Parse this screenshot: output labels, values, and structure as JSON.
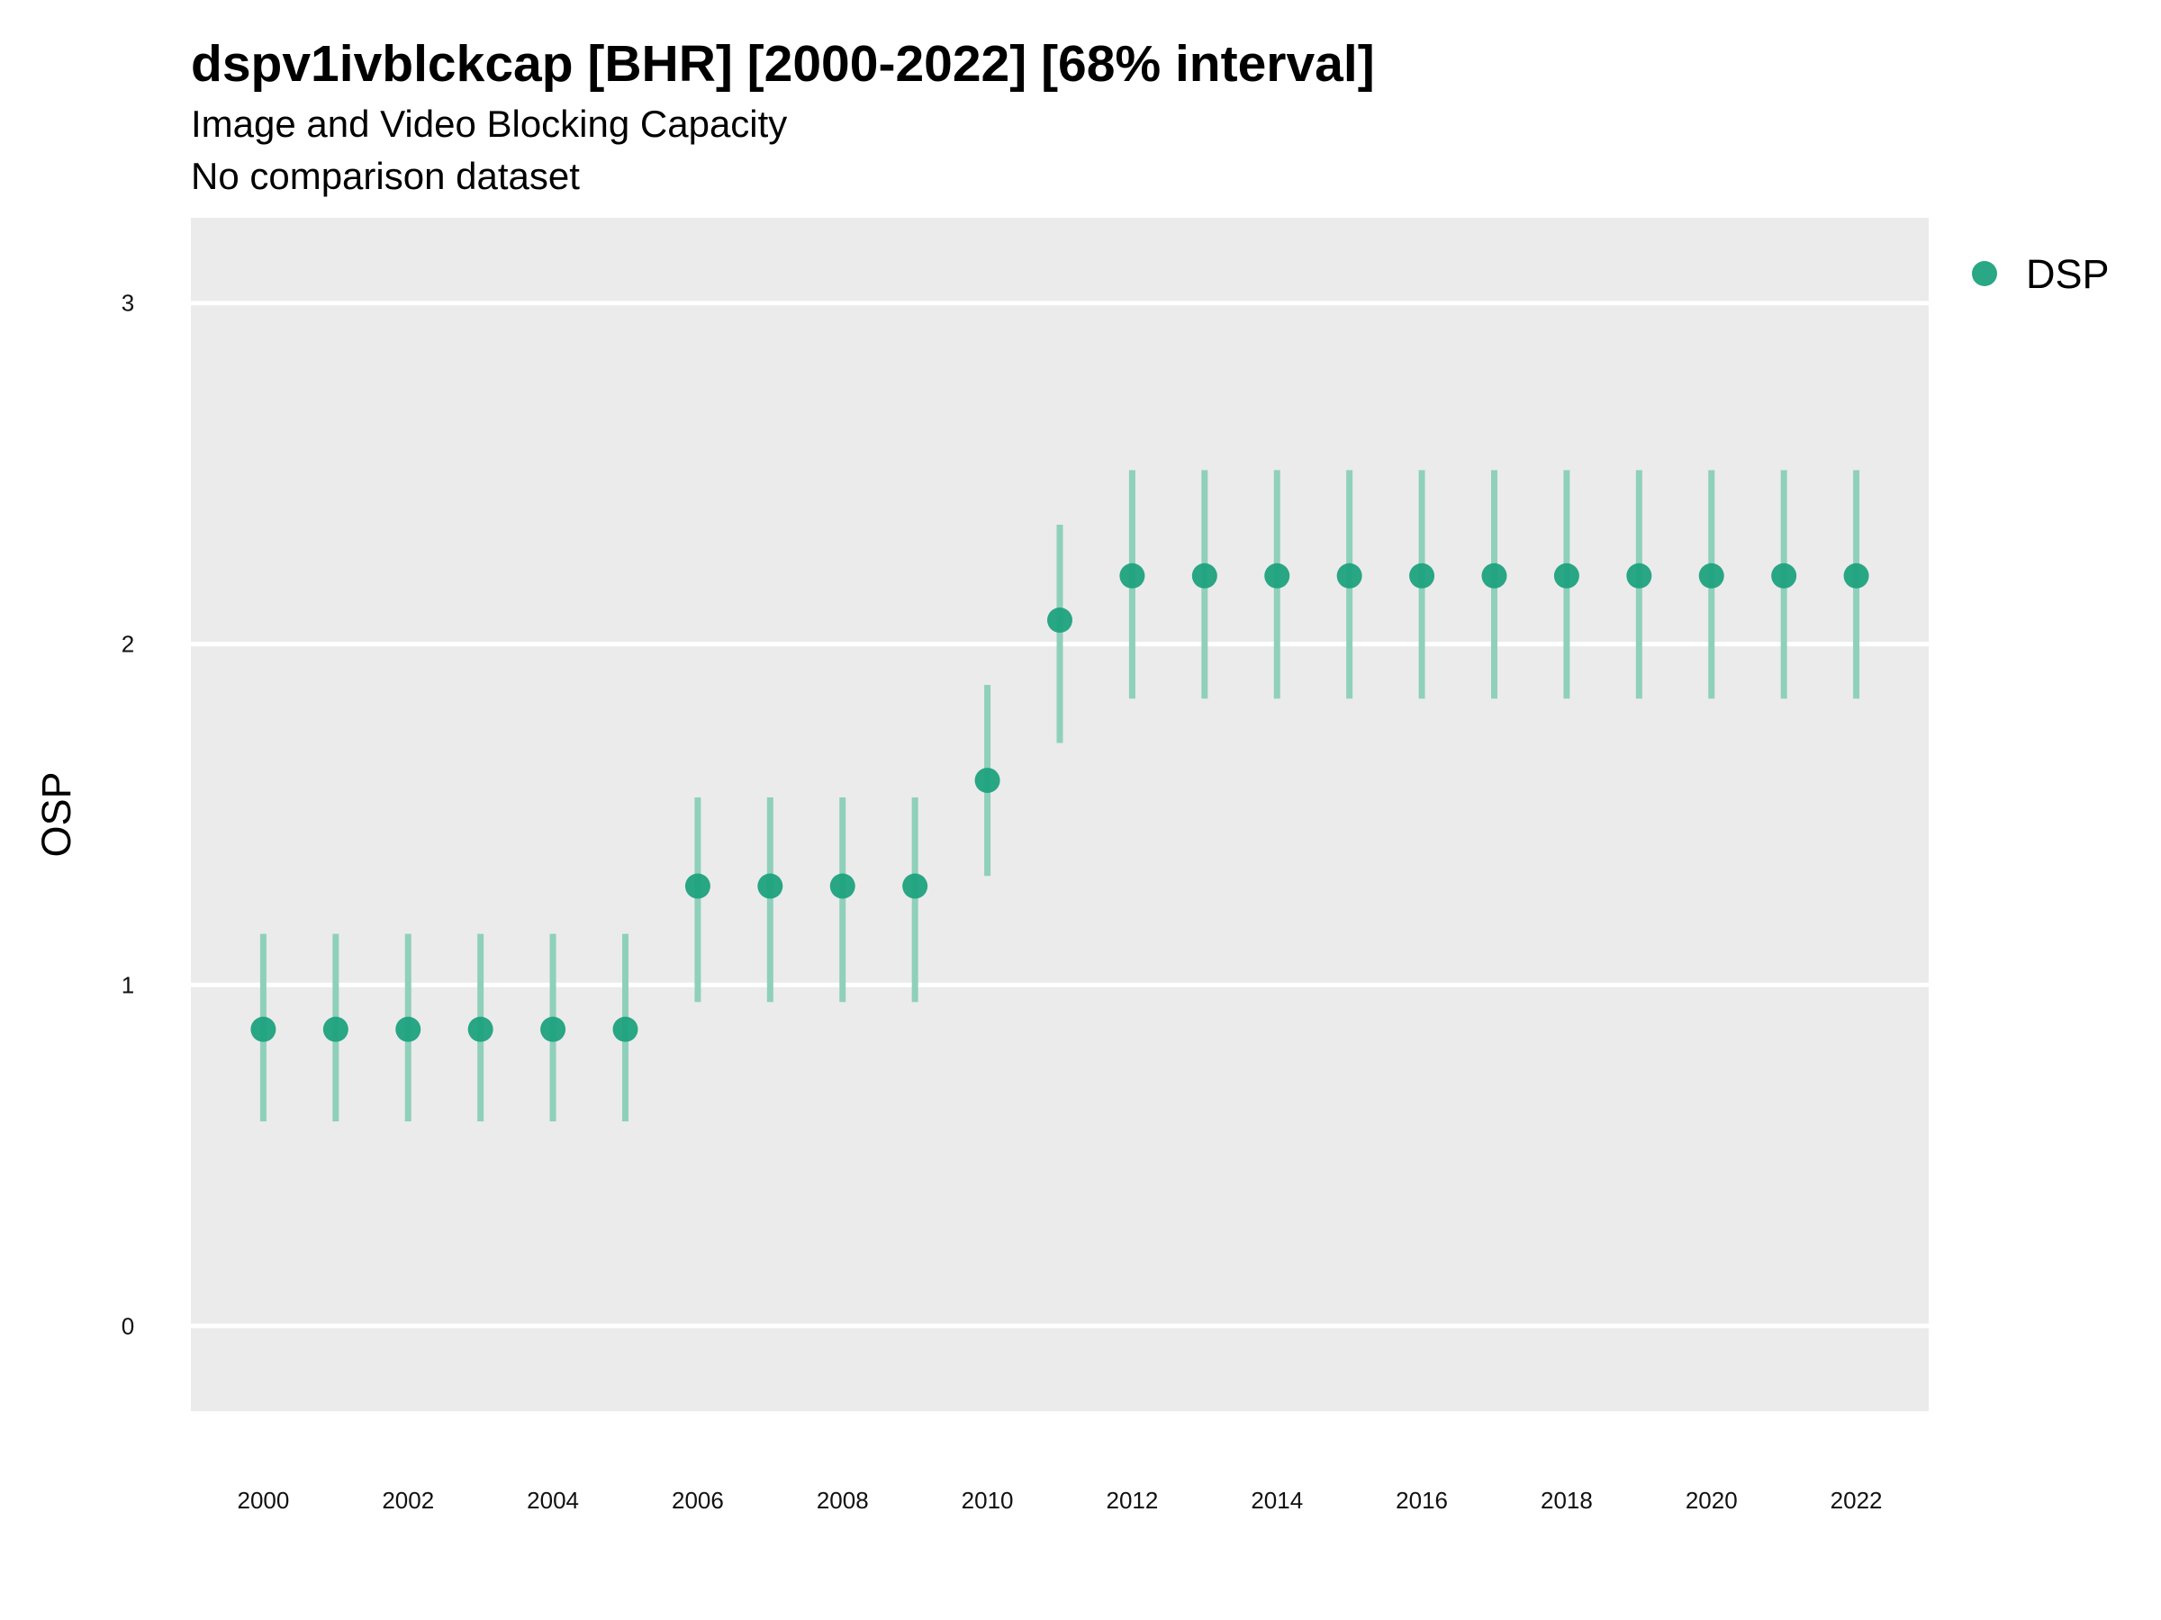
{
  "title": "dspv1ivblckcap [BHR] [2000-2022] [68% interval]",
  "subtitle": "Image and Video Blocking Capacity",
  "subtitle2": "No comparison dataset",
  "chart_data": {
    "type": "scatter",
    "title": "dspv1ivblckcap [BHR] [2000-2022] [68% interval]",
    "subtitle": "Image and Video Blocking Capacity",
    "ylabel": "OSP",
    "xlabel": "",
    "ylim": [
      -0.25,
      3.25
    ],
    "yticks": [
      0,
      1,
      2,
      3
    ],
    "xticks": [
      2000,
      2002,
      2004,
      2006,
      2008,
      2010,
      2012,
      2014,
      2016,
      2018,
      2020,
      2022
    ],
    "xlim": [
      1999,
      2023
    ],
    "grid": true,
    "legend_position": "right",
    "colors": {
      "series": "#1fa27e",
      "interval": "#8fd0bb",
      "panel": "#ebebeb",
      "gridline": "#ffffff"
    },
    "series": [
      {
        "name": "DSP",
        "x": [
          2000,
          2001,
          2002,
          2003,
          2004,
          2005,
          2006,
          2007,
          2008,
          2009,
          2010,
          2011,
          2012,
          2013,
          2014,
          2015,
          2016,
          2017,
          2018,
          2019,
          2020,
          2021,
          2022
        ],
        "y": [
          0.87,
          0.87,
          0.87,
          0.87,
          0.87,
          0.87,
          1.29,
          1.29,
          1.29,
          1.29,
          1.6,
          2.07,
          2.2,
          2.2,
          2.2,
          2.2,
          2.2,
          2.2,
          2.2,
          2.2,
          2.2,
          2.2,
          2.2
        ],
        "lower": [
          0.6,
          0.6,
          0.6,
          0.6,
          0.6,
          0.6,
          0.95,
          0.95,
          0.95,
          0.95,
          1.32,
          1.71,
          1.84,
          1.84,
          1.84,
          1.84,
          1.84,
          1.84,
          1.84,
          1.84,
          1.84,
          1.84,
          1.84
        ],
        "upper": [
          1.15,
          1.15,
          1.15,
          1.15,
          1.15,
          1.15,
          1.55,
          1.55,
          1.55,
          1.55,
          1.88,
          2.35,
          2.51,
          2.51,
          2.51,
          2.51,
          2.51,
          2.51,
          2.51,
          2.51,
          2.51,
          2.51,
          2.51
        ]
      }
    ]
  }
}
